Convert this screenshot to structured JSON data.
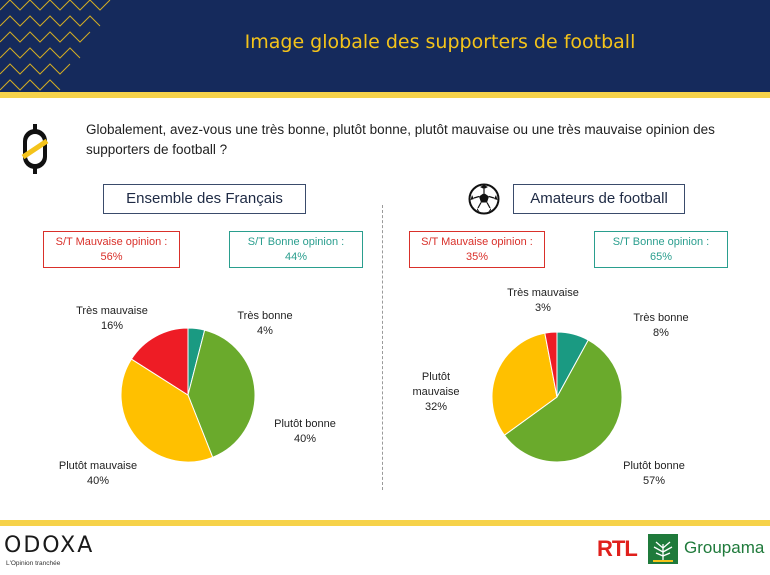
{
  "header": {
    "title": "Image globale des supporters de football"
  },
  "question": {
    "text": "Globalement, avez-vous une très bonne, plutôt bonne, plutôt mauvaise ou une très mauvaise opinion des supporters de football ?"
  },
  "colors": {
    "tres_bonne": "#1a9a82",
    "plutot_bonne": "#6aaa2c",
    "plutot_mauvaise": "#ffc000",
    "tres_mauvaise": "#ee1c25",
    "navy": "#152a5c",
    "yellow": "#f6d24a"
  },
  "icons": {
    "question": "coin-bubble-icon",
    "football": "soccer-ball-icon"
  },
  "chart_data": [
    {
      "type": "pie",
      "title": "Ensemble des Français",
      "summary": {
        "bad_label": "S/T Mauvaise opinion :",
        "bad_value": "56%",
        "good_label": "S/T Bonne opinion :",
        "good_value": "44%"
      },
      "slices": [
        {
          "name": "Très bonne",
          "value": 4,
          "label": "4%"
        },
        {
          "name": "Plutôt bonne",
          "value": 40,
          "label": "40%"
        },
        {
          "name": "Plutôt mauvaise",
          "value": 40,
          "label": "40%"
        },
        {
          "name": "Très mauvaise",
          "value": 16,
          "label": "16%"
        }
      ]
    },
    {
      "type": "pie",
      "title": "Amateurs de football",
      "summary": {
        "bad_label": "S/T Mauvaise opinion :",
        "bad_value": "35%",
        "good_label": "S/T Bonne opinion :",
        "good_value": "65%"
      },
      "slices": [
        {
          "name": "Très bonne",
          "value": 8,
          "label": "8%"
        },
        {
          "name": "Plutôt bonne",
          "value": 57,
          "label": "57%"
        },
        {
          "name": "Plutôt mauvaise",
          "value": 32,
          "label": "32%"
        },
        {
          "name": "Très mauvaise",
          "value": 3,
          "label": "3%"
        }
      ]
    }
  ],
  "footer": {
    "odoxa": "ODOXA",
    "odoxa_tagline": "L'Opinion tranchée",
    "rtl": "RTL",
    "groupama": "Groupama"
  }
}
